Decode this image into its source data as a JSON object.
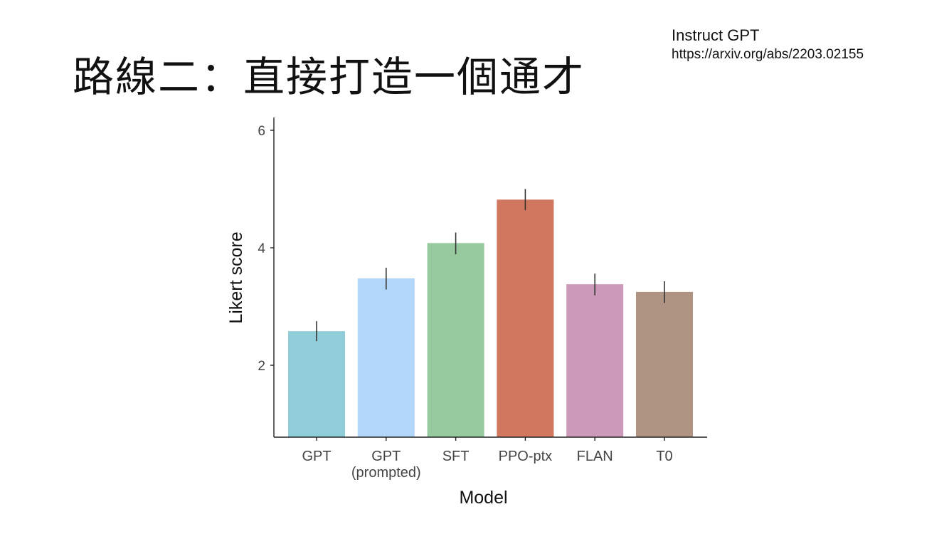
{
  "slide": {
    "title": "路線二：直接打造一個通才"
  },
  "reference": {
    "title": "Instruct GPT",
    "url": "https://arxiv.org/abs/2203.02155"
  },
  "chart_data": {
    "type": "bar",
    "categories": [
      "GPT",
      "GPT\n(prompted)",
      "SFT",
      "PPO-ptx",
      "FLAN",
      "T0"
    ],
    "category_lines": [
      [
        "GPT"
      ],
      [
        "GPT",
        "(prompted)"
      ],
      [
        "SFT"
      ],
      [
        "PPO-ptx"
      ],
      [
        "FLAN"
      ],
      [
        "T0"
      ]
    ],
    "values": [
      2.58,
      3.48,
      4.08,
      4.82,
      3.38,
      3.25
    ],
    "error_low": [
      2.41,
      3.29,
      3.89,
      4.64,
      3.19,
      3.06
    ],
    "error_high": [
      2.75,
      3.66,
      4.26,
      5.0,
      3.56,
      3.43
    ],
    "colors": [
      "#8fcdd8",
      "#b3d6fb",
      "#97c99e",
      "#d1765f",
      "#cc9ab9",
      "#af9383"
    ],
    "xlabel": "Model",
    "ylabel": "Likert score",
    "yticks": [
      2,
      4,
      6
    ],
    "ylim": [
      0.75,
      6.2
    ],
    "grid": false,
    "legend": "none"
  }
}
